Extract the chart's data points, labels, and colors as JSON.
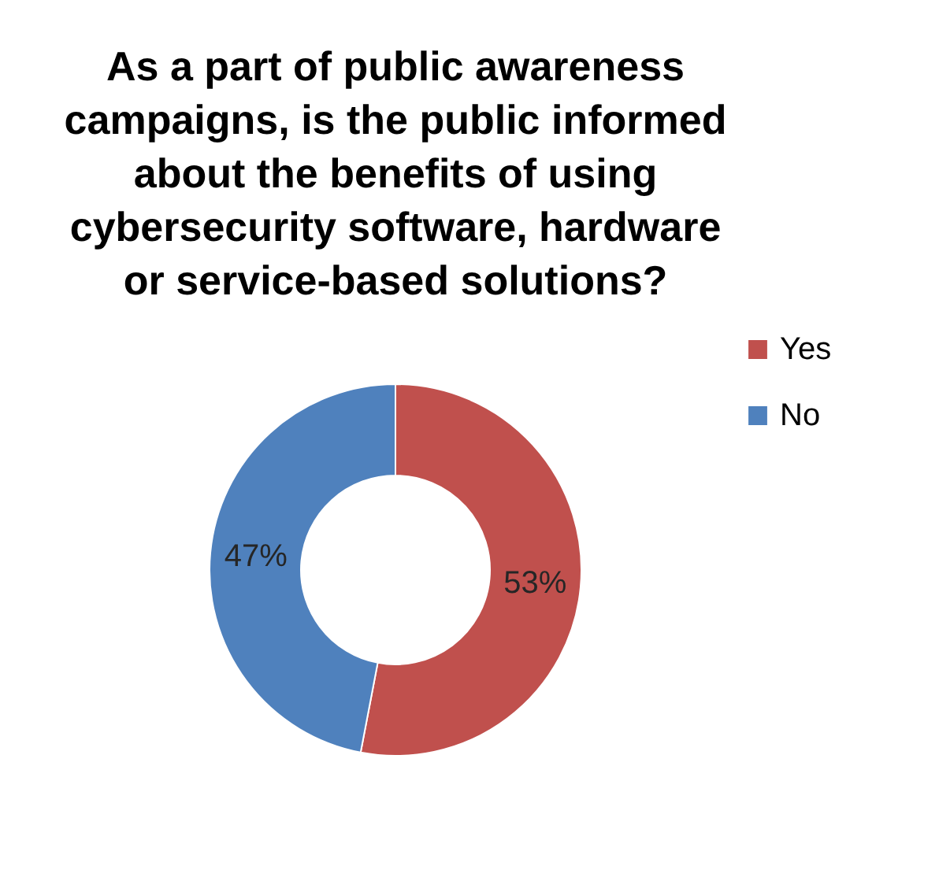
{
  "chart_data": {
    "type": "donut",
    "title": "As a part of public awareness campaigns, is the public informed about the benefits of using cybersecurity software, hardware or service-based solutions?",
    "categories": [
      "Yes",
      "No"
    ],
    "values": [
      53,
      47
    ],
    "colors": [
      "#c0504d",
      "#4f81bd"
    ],
    "value_labels": [
      "53%",
      "47%"
    ],
    "legend": "right"
  }
}
